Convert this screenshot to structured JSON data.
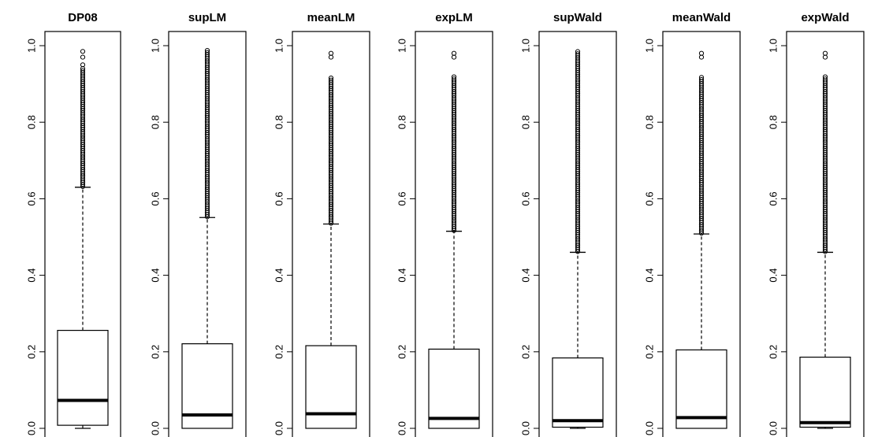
{
  "chart_data": [
    {
      "type": "boxplot",
      "title": "DP08",
      "ylim": [
        0,
        1
      ],
      "yticks": [
        "0.0",
        "0.2",
        "0.4",
        "0.6",
        "0.8",
        "1.0"
      ],
      "box": {
        "min": 0.0,
        "q1": 0.008,
        "median": 0.073,
        "q3": 0.256,
        "whisker_high": 0.63
      },
      "outliers": {
        "from": 0.632,
        "to": 0.94,
        "isolated": [
          0.95,
          0.97,
          0.985
        ]
      }
    },
    {
      "type": "boxplot",
      "title": "supLM",
      "ylim": [
        0,
        1
      ],
      "yticks": [
        "0.0",
        "0.2",
        "0.4",
        "0.6",
        "0.8",
        "1.0"
      ],
      "box": {
        "min": 0.0,
        "q1": 0.0,
        "median": 0.035,
        "q3": 0.221,
        "whisker_high": 0.551
      },
      "outliers": {
        "from": 0.553,
        "to": 0.99,
        "isolated": []
      }
    },
    {
      "type": "boxplot",
      "title": "meanLM",
      "ylim": [
        0,
        1
      ],
      "yticks": [
        "0.0",
        "0.2",
        "0.4",
        "0.6",
        "0.8",
        "1.0"
      ],
      "box": {
        "min": 0.0,
        "q1": 0.0,
        "median": 0.038,
        "q3": 0.216,
        "whisker_high": 0.534
      },
      "outliers": {
        "from": 0.536,
        "to": 0.92,
        "isolated": [
          0.97,
          0.98
        ]
      }
    },
    {
      "type": "boxplot",
      "title": "expLM",
      "ylim": [
        0,
        1
      ],
      "yticks": [
        "0.0",
        "0.2",
        "0.4",
        "0.6",
        "0.8",
        "1.0"
      ],
      "box": {
        "min": 0.0,
        "q1": 0.0,
        "median": 0.026,
        "q3": 0.207,
        "whisker_high": 0.515
      },
      "outliers": {
        "from": 0.517,
        "to": 0.92,
        "isolated": [
          0.97,
          0.98
        ]
      }
    },
    {
      "type": "boxplot",
      "title": "supWald",
      "ylim": [
        0,
        1
      ],
      "yticks": [
        "0.0",
        "0.2",
        "0.4",
        "0.6",
        "0.8",
        "1.0"
      ],
      "box": {
        "min": 0.0,
        "q1": 0.003,
        "median": 0.02,
        "q3": 0.184,
        "whisker_high": 0.46
      },
      "outliers": {
        "from": 0.462,
        "to": 0.985,
        "isolated": []
      }
    },
    {
      "type": "boxplot",
      "title": "meanWald",
      "ylim": [
        0,
        1
      ],
      "yticks": [
        "0.0",
        "0.2",
        "0.4",
        "0.6",
        "0.8",
        "1.0"
      ],
      "box": {
        "min": 0.0,
        "q1": 0.0,
        "median": 0.028,
        "q3": 0.205,
        "whisker_high": 0.508
      },
      "outliers": {
        "from": 0.51,
        "to": 0.92,
        "isolated": [
          0.97,
          0.98
        ]
      }
    },
    {
      "type": "boxplot",
      "title": "expWald",
      "ylim": [
        0,
        1
      ],
      "yticks": [
        "0.0",
        "0.2",
        "0.4",
        "0.6",
        "0.8",
        "1.0"
      ],
      "box": {
        "min": 0.0,
        "q1": 0.003,
        "median": 0.015,
        "q3": 0.186,
        "whisker_high": 0.46
      },
      "outliers": {
        "from": 0.462,
        "to": 0.92,
        "isolated": [
          0.97,
          0.98
        ]
      }
    }
  ]
}
